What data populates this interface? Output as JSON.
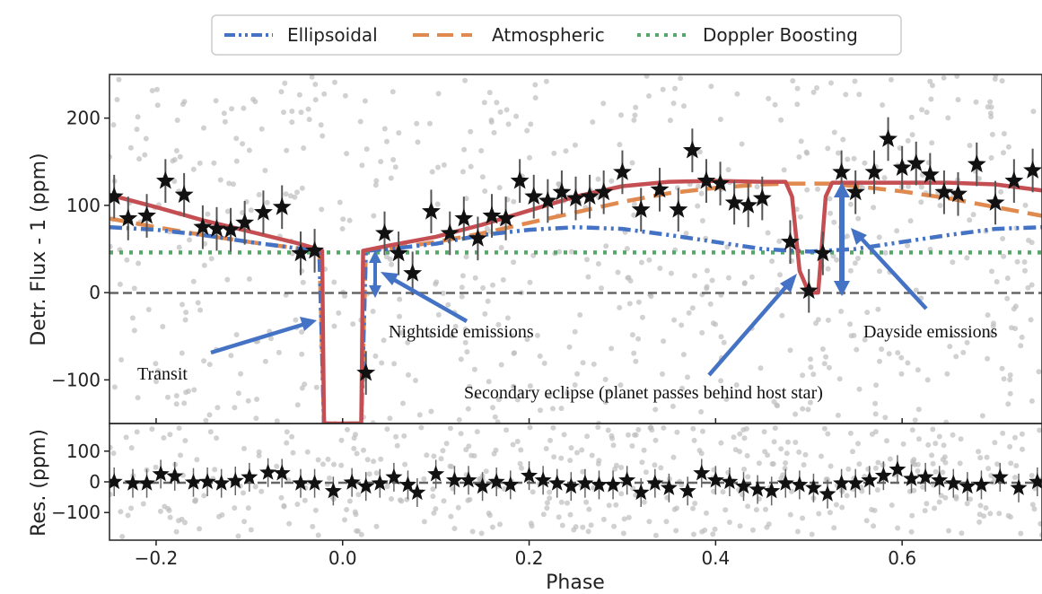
{
  "chart_data": [
    {
      "type": "scatter",
      "panel": "top",
      "xlabel": "",
      "ylabel": "Detr. Flux - 1 (ppm)",
      "xlim": [
        -0.25,
        0.75
      ],
      "ylim": [
        -150,
        250
      ],
      "yticks": [
        -100,
        0,
        100,
        200
      ],
      "ytick_labels": [
        "−100",
        "0",
        "100",
        "200"
      ],
      "grid": false,
      "legend": {
        "placement": "top-center, above plot",
        "entries": [
          "Ellipsoidal",
          "Atmospheric",
          "Doppler Boosting"
        ]
      },
      "series": [
        {
          "name": "Ellipsoidal",
          "style": "dash-dot",
          "color": "#4472c4",
          "x": [
            -0.25,
            -0.2,
            -0.15,
            -0.1,
            -0.05,
            -0.025,
            -0.02,
            0.0,
            0.02,
            0.025,
            0.05,
            0.1,
            0.15,
            0.2,
            0.25,
            0.3,
            0.35,
            0.4,
            0.45,
            0.5,
            0.55,
            0.6,
            0.65,
            0.7,
            0.75
          ],
          "y": [
            75,
            72,
            66,
            58,
            51,
            48,
            -150,
            -150,
            -150,
            48,
            50,
            56,
            66,
            72,
            75,
            73,
            66,
            58,
            50,
            47,
            50,
            58,
            66,
            73,
            75
          ]
        },
        {
          "name": "Atmospheric",
          "style": "dashed",
          "color": "#e08a50",
          "x": [
            -0.25,
            -0.2,
            -0.15,
            -0.1,
            -0.05,
            -0.025,
            -0.02,
            0.0,
            0.02,
            0.025,
            0.05,
            0.1,
            0.15,
            0.2,
            0.25,
            0.3,
            0.35,
            0.4,
            0.45,
            0.48,
            0.52,
            0.55,
            0.6,
            0.65,
            0.7,
            0.75
          ],
          "y": [
            85,
            75,
            66,
            58,
            51,
            48,
            -150,
            -150,
            -150,
            48,
            50,
            58,
            68,
            80,
            92,
            104,
            114,
            120,
            124,
            125,
            125,
            122,
            116,
            108,
            98,
            88
          ]
        },
        {
          "name": "Doppler Boosting",
          "style": "dotted",
          "color": "#55a868",
          "x": [
            -0.25,
            0.75
          ],
          "y": [
            46,
            46
          ]
        },
        {
          "name": "",
          "style": "solid",
          "color": "#c44e52",
          "x": [
            -0.25,
            -0.2,
            -0.15,
            -0.1,
            -0.05,
            -0.03,
            -0.022,
            -0.02,
            0.0,
            0.02,
            0.022,
            0.05,
            0.1,
            0.15,
            0.2,
            0.25,
            0.3,
            0.35,
            0.4,
            0.45,
            0.475,
            0.482,
            0.49,
            0.5,
            0.51,
            0.518,
            0.525,
            0.55,
            0.6,
            0.65,
            0.7,
            0.75
          ],
          "y": [
            112,
            98,
            83,
            70,
            57,
            51,
            48,
            -150,
            -150,
            -150,
            48,
            54,
            64,
            78,
            94,
            110,
            122,
            127,
            128,
            127,
            127,
            110,
            25,
            0,
            0,
            110,
            126,
            126,
            126,
            126,
            124,
            117
          ]
        }
      ],
      "points": [
        {
          "x": -0.245,
          "y": 110,
          "err": 25
        },
        {
          "x": -0.23,
          "y": 85,
          "err": 25
        },
        {
          "x": -0.21,
          "y": 88,
          "err": 25
        },
        {
          "x": -0.19,
          "y": 128,
          "err": 25
        },
        {
          "x": -0.17,
          "y": 112,
          "err": 25
        },
        {
          "x": -0.15,
          "y": 75,
          "err": 25
        },
        {
          "x": -0.135,
          "y": 73,
          "err": 25
        },
        {
          "x": -0.12,
          "y": 72,
          "err": 25
        },
        {
          "x": -0.105,
          "y": 80,
          "err": 25
        },
        {
          "x": -0.085,
          "y": 92,
          "err": 25
        },
        {
          "x": -0.065,
          "y": 98,
          "err": 25
        },
        {
          "x": -0.045,
          "y": 45,
          "err": 25
        },
        {
          "x": -0.03,
          "y": 48,
          "err": 25
        },
        {
          "x": 0.025,
          "y": -92,
          "err": 25
        },
        {
          "x": 0.045,
          "y": 68,
          "err": 25
        },
        {
          "x": 0.06,
          "y": 45,
          "err": 25
        },
        {
          "x": 0.075,
          "y": 22,
          "err": 25
        },
        {
          "x": 0.095,
          "y": 93,
          "err": 25
        },
        {
          "x": 0.115,
          "y": 68,
          "err": 25
        },
        {
          "x": 0.13,
          "y": 85,
          "err": 25
        },
        {
          "x": 0.145,
          "y": 62,
          "err": 25
        },
        {
          "x": 0.16,
          "y": 88,
          "err": 25
        },
        {
          "x": 0.175,
          "y": 85,
          "err": 25
        },
        {
          "x": 0.19,
          "y": 128,
          "err": 25
        },
        {
          "x": 0.205,
          "y": 110,
          "err": 25
        },
        {
          "x": 0.22,
          "y": 105,
          "err": 25
        },
        {
          "x": 0.235,
          "y": 115,
          "err": 25
        },
        {
          "x": 0.25,
          "y": 108,
          "err": 25
        },
        {
          "x": 0.265,
          "y": 110,
          "err": 25
        },
        {
          "x": 0.28,
          "y": 115,
          "err": 25
        },
        {
          "x": 0.3,
          "y": 138,
          "err": 25
        },
        {
          "x": 0.32,
          "y": 95,
          "err": 25
        },
        {
          "x": 0.34,
          "y": 118,
          "err": 25
        },
        {
          "x": 0.36,
          "y": 95,
          "err": 25
        },
        {
          "x": 0.375,
          "y": 163,
          "err": 25
        },
        {
          "x": 0.39,
          "y": 128,
          "err": 25
        },
        {
          "x": 0.405,
          "y": 125,
          "err": 25
        },
        {
          "x": 0.42,
          "y": 103,
          "err": 25
        },
        {
          "x": 0.435,
          "y": 100,
          "err": 25
        },
        {
          "x": 0.45,
          "y": 108,
          "err": 25
        },
        {
          "x": 0.48,
          "y": 58,
          "err": 25
        },
        {
          "x": 0.5,
          "y": 2,
          "err": 25
        },
        {
          "x": 0.515,
          "y": 45,
          "err": 25
        },
        {
          "x": 0.535,
          "y": 138,
          "err": 25
        },
        {
          "x": 0.55,
          "y": 115,
          "err": 25
        },
        {
          "x": 0.57,
          "y": 138,
          "err": 25
        },
        {
          "x": 0.585,
          "y": 176,
          "err": 25
        },
        {
          "x": 0.6,
          "y": 143,
          "err": 25
        },
        {
          "x": 0.615,
          "y": 148,
          "err": 25
        },
        {
          "x": 0.63,
          "y": 135,
          "err": 25
        },
        {
          "x": 0.645,
          "y": 115,
          "err": 25
        },
        {
          "x": 0.66,
          "y": 113,
          "err": 25
        },
        {
          "x": 0.68,
          "y": 147,
          "err": 25
        },
        {
          "x": 0.7,
          "y": 103,
          "err": 25
        },
        {
          "x": 0.72,
          "y": 128,
          "err": 25
        },
        {
          "x": 0.74,
          "y": 140,
          "err": 25
        }
      ],
      "zero_line": 0,
      "annotations": [
        {
          "text": "Transit",
          "x": -0.195,
          "y": -92
        },
        {
          "text": "Nightside emissions",
          "x": 0.115,
          "y": -42
        },
        {
          "text": "Secondary eclipse (planet passes behind host star)",
          "x": 0.41,
          "y": -115
        },
        {
          "text": "Dayside emissions",
          "x": 0.64,
          "y": -42
        }
      ]
    },
    {
      "type": "scatter",
      "panel": "bottom",
      "xlabel": "Phase",
      "ylabel": "Res. (ppm)",
      "xlim": [
        -0.25,
        0.75
      ],
      "ylim": [
        -190,
        190
      ],
      "xticks": [
        -0.2,
        0.0,
        0.2,
        0.4,
        0.6
      ],
      "xtick_labels": [
        "−0.2",
        "0.0",
        "0.2",
        "0.4",
        "0.6"
      ],
      "yticks": [
        -100,
        0,
        100
      ],
      "ytick_labels": [
        "−100",
        "0",
        "100"
      ],
      "grid": false,
      "zero_line": 0,
      "points": [
        {
          "x": -0.245,
          "y": 0
        },
        {
          "x": -0.225,
          "y": -5
        },
        {
          "x": -0.21,
          "y": -5
        },
        {
          "x": -0.195,
          "y": 25
        },
        {
          "x": -0.18,
          "y": 18
        },
        {
          "x": -0.16,
          "y": -2
        },
        {
          "x": -0.145,
          "y": 0
        },
        {
          "x": -0.13,
          "y": -5
        },
        {
          "x": -0.115,
          "y": 3
        },
        {
          "x": -0.1,
          "y": 15
        },
        {
          "x": -0.08,
          "y": 30
        },
        {
          "x": -0.065,
          "y": 28
        },
        {
          "x": -0.045,
          "y": -5
        },
        {
          "x": -0.03,
          "y": -5
        },
        {
          "x": -0.01,
          "y": -30
        },
        {
          "x": 0.01,
          "y": -2
        },
        {
          "x": 0.025,
          "y": -15
        },
        {
          "x": 0.04,
          "y": -5
        },
        {
          "x": 0.055,
          "y": 15
        },
        {
          "x": 0.07,
          "y": -10
        },
        {
          "x": 0.08,
          "y": -35
        },
        {
          "x": 0.1,
          "y": 25
        },
        {
          "x": 0.12,
          "y": 5
        },
        {
          "x": 0.135,
          "y": 5
        },
        {
          "x": 0.15,
          "y": -15
        },
        {
          "x": 0.165,
          "y": 0
        },
        {
          "x": 0.18,
          "y": -10
        },
        {
          "x": 0.2,
          "y": 20
        },
        {
          "x": 0.215,
          "y": 5
        },
        {
          "x": 0.23,
          "y": -5
        },
        {
          "x": 0.245,
          "y": -15
        },
        {
          "x": 0.26,
          "y": -5
        },
        {
          "x": 0.275,
          "y": -10
        },
        {
          "x": 0.29,
          "y": -10
        },
        {
          "x": 0.305,
          "y": 5
        },
        {
          "x": 0.32,
          "y": -35
        },
        {
          "x": 0.335,
          "y": -5
        },
        {
          "x": 0.35,
          "y": -20
        },
        {
          "x": 0.37,
          "y": -30
        },
        {
          "x": 0.385,
          "y": 28
        },
        {
          "x": 0.4,
          "y": 5
        },
        {
          "x": 0.415,
          "y": 0
        },
        {
          "x": 0.43,
          "y": -15
        },
        {
          "x": 0.445,
          "y": -25
        },
        {
          "x": 0.46,
          "y": -30
        },
        {
          "x": 0.475,
          "y": -5
        },
        {
          "x": 0.49,
          "y": -10
        },
        {
          "x": 0.505,
          "y": -20
        },
        {
          "x": 0.52,
          "y": -40
        },
        {
          "x": 0.535,
          "y": -5
        },
        {
          "x": 0.55,
          "y": -5
        },
        {
          "x": 0.565,
          "y": 5
        },
        {
          "x": 0.58,
          "y": 20
        },
        {
          "x": 0.595,
          "y": 40
        },
        {
          "x": 0.61,
          "y": 10
        },
        {
          "x": 0.625,
          "y": 15
        },
        {
          "x": 0.64,
          "y": 5
        },
        {
          "x": 0.655,
          "y": -5
        },
        {
          "x": 0.67,
          "y": -15
        },
        {
          "x": 0.685,
          "y": -10
        },
        {
          "x": 0.705,
          "y": 15
        },
        {
          "x": 0.725,
          "y": -20
        },
        {
          "x": 0.745,
          "y": 0
        }
      ]
    }
  ],
  "colors": {
    "ellipsoidal": "#4472c4",
    "atmospheric": "#e08a50",
    "doppler": "#55a868",
    "model": "#c44e52",
    "arrow": "#4472c4",
    "zero_line": "#666666",
    "background_points": "#bdbdbd",
    "stars": "#111111"
  }
}
